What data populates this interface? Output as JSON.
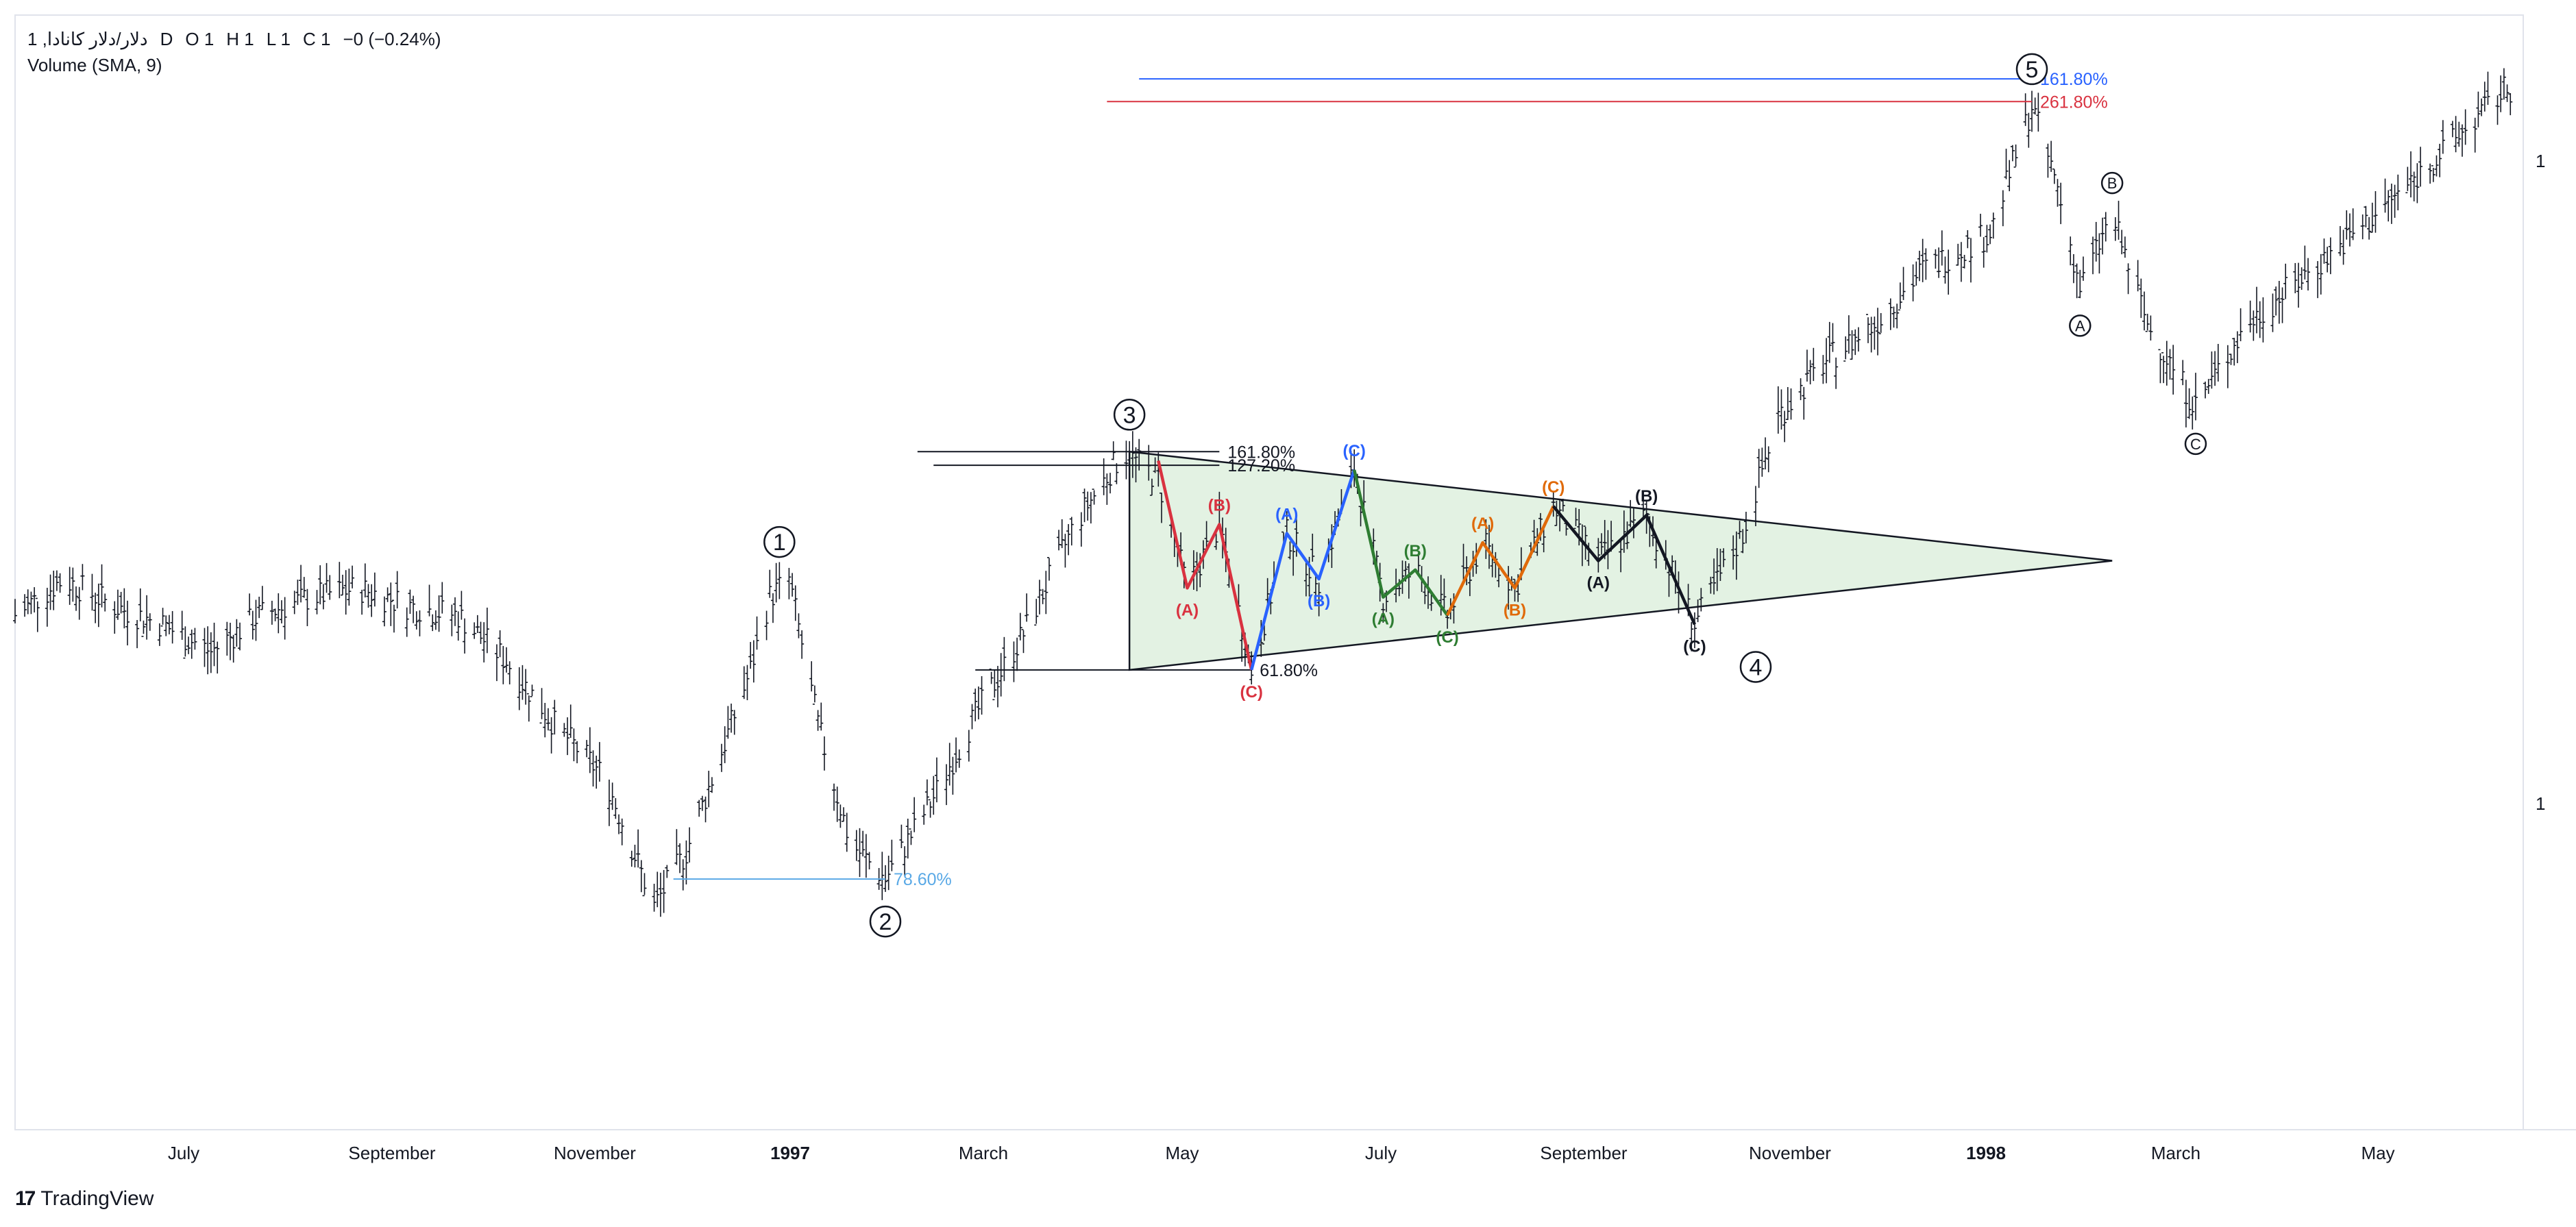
{
  "legend": {
    "symbol": "1 ,دلار/دلار کانادا",
    "interval": "D",
    "o_label": "O",
    "o_value": "1",
    "h_label": "H",
    "h_value": "1",
    "l_label": "L",
    "l_value": "1",
    "c_label": "C",
    "c_value": "1",
    "change": "−0 (−0.24%)",
    "volume": "Volume (SMA, 9)"
  },
  "brand": {
    "name": "TradingView",
    "logo_text": "17"
  },
  "price_scale": {
    "label_top": "1",
    "label_bottom": "1"
  },
  "colors": {
    "bars": "#131722",
    "triangle_fill": "#dcefdc",
    "triangle_stroke": "#131722",
    "red": "#d93240",
    "blue": "#2962ff",
    "green": "#2e7d32",
    "orange": "#e06a0a",
    "black": "#131722",
    "fib_light_blue": "#5aa9e6",
    "fib_blue": "#2962ff",
    "fib_red": "#d93240"
  },
  "chart_data": {
    "type": "ohlc",
    "x_axis_ticks": [
      {
        "label": "July",
        "bold": false
      },
      {
        "label": "September",
        "bold": false
      },
      {
        "label": "November",
        "bold": false
      },
      {
        "label": "1997",
        "bold": true
      },
      {
        "label": "March",
        "bold": false
      },
      {
        "label": "May",
        "bold": false
      },
      {
        "label": "July",
        "bold": false
      },
      {
        "label": "September",
        "bold": false
      },
      {
        "label": "November",
        "bold": false
      },
      {
        "label": "1998",
        "bold": true
      },
      {
        "label": "March",
        "bold": false
      },
      {
        "label": "May",
        "bold": false
      }
    ],
    "x_range": [
      "1996-05-10",
      "1998-06-30"
    ],
    "y_range": [
      -5,
      105
    ],
    "price_path": [
      {
        "date": "1996-05-10",
        "value": 42
      },
      {
        "date": "1996-05-25",
        "value": 46
      },
      {
        "date": "1996-06-10",
        "value": 43
      },
      {
        "date": "1996-06-25",
        "value": 41
      },
      {
        "date": "1996-07-10",
        "value": 38
      },
      {
        "date": "1996-07-25",
        "value": 42
      },
      {
        "date": "1996-08-10",
        "value": 44
      },
      {
        "date": "1996-08-25",
        "value": 45
      },
      {
        "date": "1996-09-10",
        "value": 43
      },
      {
        "date": "1996-09-25",
        "value": 42
      },
      {
        "date": "1996-10-10",
        "value": 37
      },
      {
        "date": "1996-10-25",
        "value": 30
      },
      {
        "date": "1996-11-10",
        "value": 24
      },
      {
        "date": "1996-11-25",
        "value": 10
      },
      {
        "date": "1996-12-05",
        "value": 16
      },
      {
        "date": "1996-12-15",
        "value": 26
      },
      {
        "date": "1996-12-25",
        "value": 36
      },
      {
        "date": "1996-12-31",
        "value": 44
      },
      {
        "date": "1997-01-06",
        "value": 46
      },
      {
        "date": "1997-01-15",
        "value": 30
      },
      {
        "date": "1997-01-25",
        "value": 17
      },
      {
        "date": "1997-02-05",
        "value": 13
      },
      {
        "date": "1997-02-20",
        "value": 22
      },
      {
        "date": "1997-03-05",
        "value": 31
      },
      {
        "date": "1997-03-20",
        "value": 40
      },
      {
        "date": "1997-04-05",
        "value": 52
      },
      {
        "date": "1997-04-20",
        "value": 60
      },
      {
        "date": "1997-05-01",
        "value": 57
      },
      {
        "date": "1997-05-10",
        "value": 45
      },
      {
        "date": "1997-05-20",
        "value": 52
      },
      {
        "date": "1997-05-30",
        "value": 36
      },
      {
        "date": "1997-06-10",
        "value": 51
      },
      {
        "date": "1997-06-20",
        "value": 46
      },
      {
        "date": "1997-07-01",
        "value": 58
      },
      {
        "date": "1997-07-10",
        "value": 44
      },
      {
        "date": "1997-07-20",
        "value": 47
      },
      {
        "date": "1997-07-30",
        "value": 42
      },
      {
        "date": "1997-08-10",
        "value": 50
      },
      {
        "date": "1997-08-20",
        "value": 45
      },
      {
        "date": "1997-09-01",
        "value": 54
      },
      {
        "date": "1997-09-15",
        "value": 48
      },
      {
        "date": "1997-09-30",
        "value": 53
      },
      {
        "date": "1997-10-15",
        "value": 41
      },
      {
        "date": "1997-10-30",
        "value": 51
      },
      {
        "date": "1997-11-10",
        "value": 64
      },
      {
        "date": "1997-11-25",
        "value": 70
      },
      {
        "date": "1997-12-10",
        "value": 74
      },
      {
        "date": "1997-12-25",
        "value": 80
      },
      {
        "date": "1998-01-15",
        "value": 84
      },
      {
        "date": "1998-01-28",
        "value": 98
      },
      {
        "date": "1998-02-05",
        "value": 89
      },
      {
        "date": "1998-02-12",
        "value": 78
      },
      {
        "date": "1998-02-22",
        "value": 86
      },
      {
        "date": "1998-03-05",
        "value": 74
      },
      {
        "date": "1998-03-20",
        "value": 65
      },
      {
        "date": "1998-04-05",
        "value": 74
      },
      {
        "date": "1998-04-25",
        "value": 80
      },
      {
        "date": "1998-05-15",
        "value": 86
      },
      {
        "date": "1998-06-05",
        "value": 93
      },
      {
        "date": "1998-06-25",
        "value": 100
      }
    ],
    "wave_labels": [
      {
        "label": "1",
        "date": "1997-01-03",
        "value": 46,
        "circled": true
      },
      {
        "label": "2",
        "date": "1997-02-05",
        "value": 13,
        "circled": true
      },
      {
        "label": "3",
        "date": "1997-04-22",
        "value": 60,
        "circled": true
      },
      {
        "label": "4",
        "date": "1997-11-03",
        "value": 41,
        "circled": true
      },
      {
        "label": "5",
        "date": "1998-01-28",
        "value": 98,
        "circled": true
      },
      {
        "label": "A",
        "date": "1998-02-12",
        "value": 78,
        "circled": true
      },
      {
        "label": "B",
        "date": "1998-02-22",
        "value": 86,
        "circled": true
      },
      {
        "label": "C",
        "date": "1998-03-20",
        "value": 65,
        "circled": true
      }
    ],
    "triangle": {
      "points": [
        {
          "date": "1997-04-22",
          "value": 60
        },
        {
          "date": "1997-04-22",
          "value": 36
        },
        {
          "date": "1998-02-22",
          "value": 48
        }
      ]
    },
    "subwaves": [
      {
        "color": "red",
        "points": [
          {
            "date": "1997-05-01",
            "value": 59,
            "label": ""
          },
          {
            "date": "1997-05-10",
            "value": 45,
            "label": "(A)"
          },
          {
            "date": "1997-05-20",
            "value": 52,
            "label": "(B)"
          },
          {
            "date": "1997-05-30",
            "value": 36,
            "label": "(C)"
          }
        ]
      },
      {
        "color": "blue",
        "points": [
          {
            "date": "1997-05-30",
            "value": 36,
            "label": ""
          },
          {
            "date": "1997-06-10",
            "value": 51,
            "label": "(A)"
          },
          {
            "date": "1997-06-20",
            "value": 46,
            "label": "(B)"
          },
          {
            "date": "1997-07-01",
            "value": 58,
            "label": "(C)"
          }
        ]
      },
      {
        "color": "green",
        "points": [
          {
            "date": "1997-07-01",
            "value": 58,
            "label": ""
          },
          {
            "date": "1997-07-10",
            "value": 44,
            "label": "(A)"
          },
          {
            "date": "1997-07-20",
            "value": 47,
            "label": "(B)"
          },
          {
            "date": "1997-07-30",
            "value": 42,
            "label": "(C)"
          }
        ]
      },
      {
        "color": "orange",
        "points": [
          {
            "date": "1997-07-30",
            "value": 42,
            "label": ""
          },
          {
            "date": "1997-08-10",
            "value": 50,
            "label": "(A)"
          },
          {
            "date": "1997-08-20",
            "value": 45,
            "label": "(B)"
          },
          {
            "date": "1997-09-01",
            "value": 54,
            "label": "(C)"
          }
        ]
      },
      {
        "color": "black",
        "points": [
          {
            "date": "1997-09-01",
            "value": 54,
            "label": ""
          },
          {
            "date": "1997-09-15",
            "value": 48,
            "label": "(A)"
          },
          {
            "date": "1997-09-30",
            "value": 53,
            "label": "(B)"
          },
          {
            "date": "1997-10-15",
            "value": 41,
            "label": "(C)"
          }
        ]
      }
    ],
    "fib_levels": [
      {
        "label": "78.60%",
        "value": 13,
        "from": "1996-12-01",
        "to": "1997-02-05",
        "color": "light_blue"
      },
      {
        "label": "161.80%",
        "value": 60,
        "from": "1997-02-15",
        "to": "1997-05-20",
        "color": "black"
      },
      {
        "label": "127.20%",
        "value": 58.5,
        "from": "1997-02-20",
        "to": "1997-05-20",
        "color": "black"
      },
      {
        "label": "61.80%",
        "value": 36,
        "from": "1997-03-05",
        "to": "1997-05-30",
        "color": "black"
      },
      {
        "label": "161.80%",
        "value": 101,
        "from": "1997-04-25",
        "to": "1998-01-28",
        "color": "blue"
      },
      {
        "label": "261.80%",
        "value": 98.5,
        "from": "1997-04-15",
        "to": "1998-01-28",
        "color": "red"
      }
    ]
  }
}
